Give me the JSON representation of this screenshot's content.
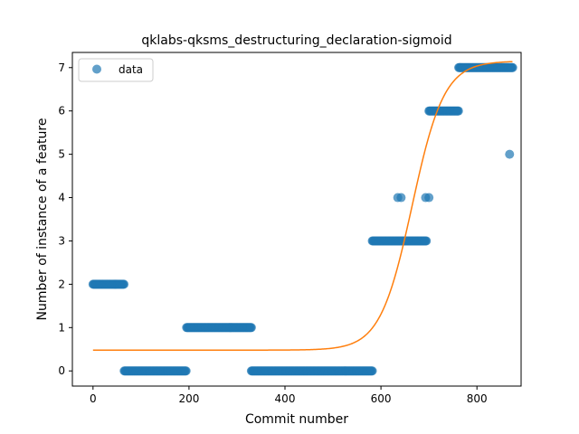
{
  "chart_data": {
    "type": "scatter",
    "title": "qklabs-qksms_destructuring_declaration-sigmoid",
    "xlabel": "Commit number",
    "ylabel": "Number of instance of a feature",
    "xlim": [
      -43,
      892
    ],
    "ylim": [
      -0.35,
      7.35
    ],
    "xticks": [
      0,
      200,
      400,
      600,
      800
    ],
    "yticks": [
      0,
      1,
      2,
      3,
      4,
      5,
      6,
      7
    ],
    "legend": {
      "position": "top-left",
      "entries": [
        "data"
      ]
    },
    "grid": false,
    "colors": {
      "data": "#1f77b4",
      "fit": "#ff7f0e"
    },
    "series": [
      {
        "name": "data",
        "kind": "scatter",
        "segments": [
          {
            "x_start": 0,
            "x_end": 65,
            "y": 2
          },
          {
            "x_start": 65,
            "x_end": 195,
            "y": 0
          },
          {
            "x_start": 195,
            "x_end": 330,
            "y": 1
          },
          {
            "x_start": 330,
            "x_end": 582,
            "y": 0
          },
          {
            "x_start": 582,
            "x_end": 695,
            "y": 3
          },
          {
            "x_start": 700,
            "x_end": 762,
            "y": 6
          },
          {
            "x_start": 762,
            "x_end": 875,
            "y": 7
          }
        ],
        "points": [
          {
            "x": 635,
            "y": 4
          },
          {
            "x": 642,
            "y": 4
          },
          {
            "x": 693,
            "y": 4
          },
          {
            "x": 700,
            "y": 4
          },
          {
            "x": 868,
            "y": 5
          }
        ]
      },
      {
        "kind": "line",
        "sigmoid": {
          "lower": 0.48,
          "upper": 7.15,
          "x0": 665,
          "k": 0.03
        },
        "x_range": [
          0,
          875
        ]
      }
    ]
  }
}
